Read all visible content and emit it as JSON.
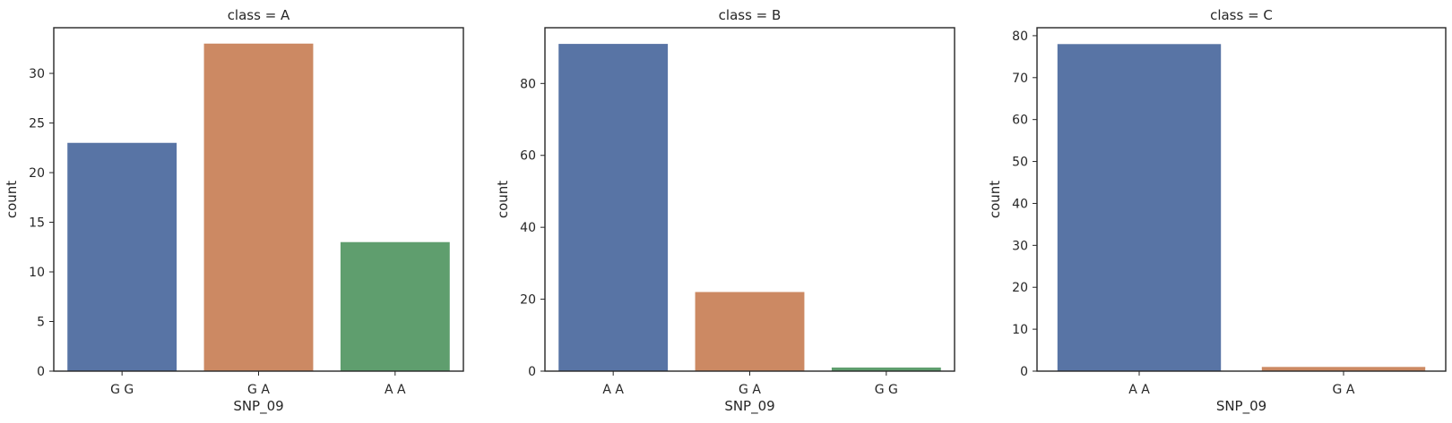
{
  "chart_data": [
    {
      "type": "bar",
      "title": "class = A",
      "xlabel": "SNP_09",
      "ylabel": "count",
      "categories": [
        "G G",
        "G A",
        "A A"
      ],
      "values": [
        23,
        33,
        13
      ],
      "colors": [
        "#5874a5",
        "#cc8963",
        "#5f9e6e"
      ],
      "ylim": [
        0,
        34.6
      ],
      "yticks": [
        0,
        5,
        10,
        15,
        20,
        25,
        30
      ],
      "grid": false
    },
    {
      "type": "bar",
      "title": "class = B",
      "xlabel": "SNP_09",
      "ylabel": "count",
      "categories": [
        "A A",
        "G A",
        "G G"
      ],
      "values": [
        91,
        22,
        1
      ],
      "colors": [
        "#5874a5",
        "#cc8963",
        "#5f9e6e"
      ],
      "ylim": [
        0,
        95.5
      ],
      "yticks": [
        0,
        20,
        40,
        60,
        80
      ],
      "grid": false
    },
    {
      "type": "bar",
      "title": "class = C",
      "xlabel": "SNP_09",
      "ylabel": "count",
      "categories": [
        "A A",
        "G A"
      ],
      "values": [
        78,
        1
      ],
      "colors": [
        "#5874a5",
        "#cc8963"
      ],
      "ylim": [
        0,
        81.9
      ],
      "yticks": [
        0,
        10,
        20,
        30,
        40,
        50,
        60,
        70,
        80
      ],
      "grid": false
    }
  ]
}
